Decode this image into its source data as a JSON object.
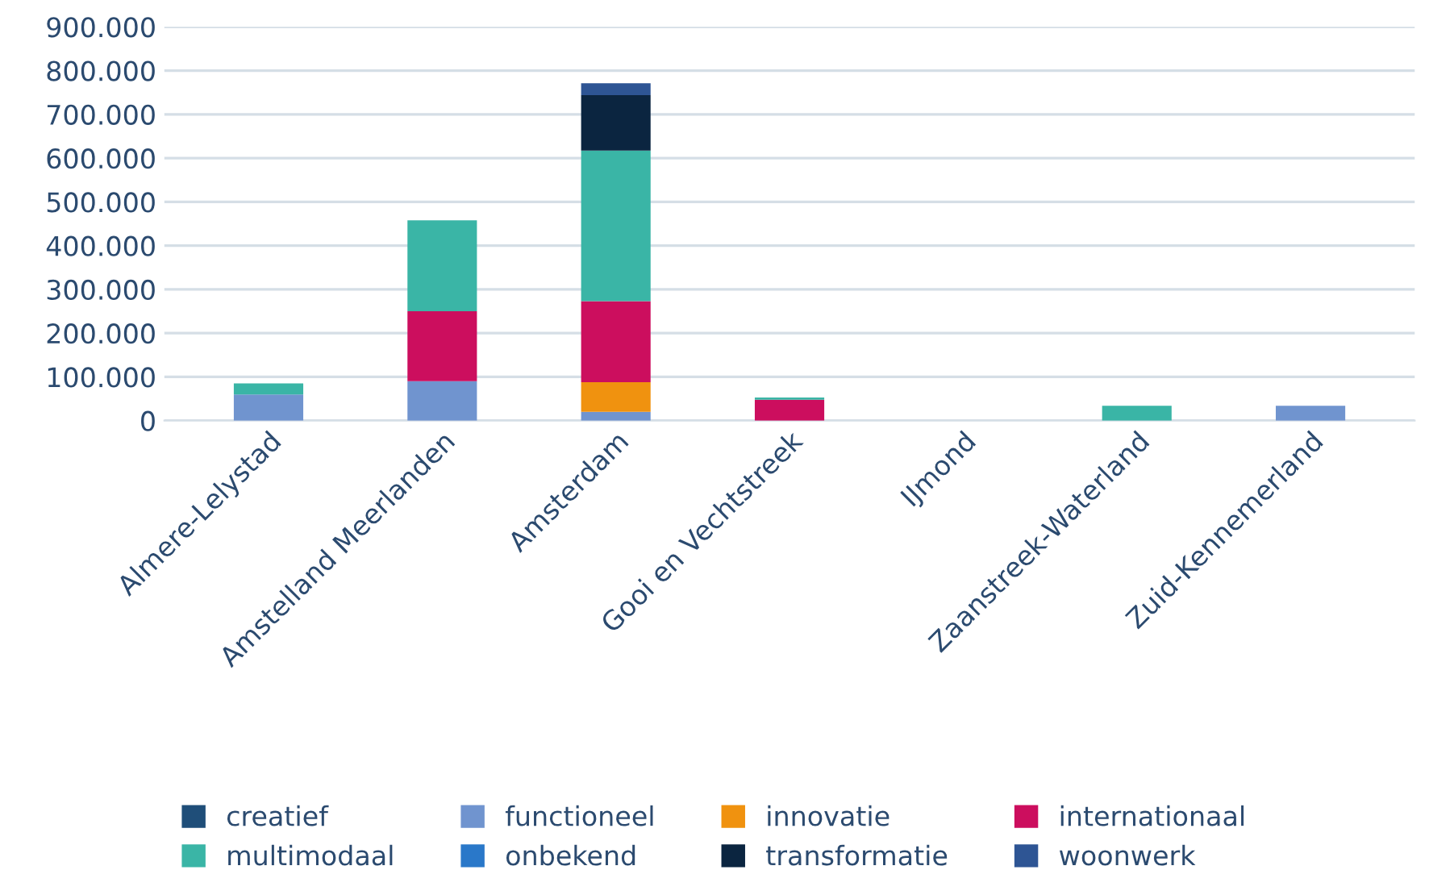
{
  "chart_data": {
    "type": "bar",
    "stacked": true,
    "categories": [
      "Almere-Lelystad",
      "Amstelland Meerlanden",
      "Amsterdam",
      "Gooi en Vechtstreek",
      "IJmond",
      "Zaanstreek-Waterland",
      "Zuid-Kennemerland"
    ],
    "series": [
      {
        "name": "creatief",
        "color": "#1f4e79",
        "values": [
          null,
          null,
          null,
          null,
          null,
          null,
          null
        ]
      },
      {
        "name": "functioneel",
        "color": "#7094cf",
        "values": [
          60000,
          90000,
          20000,
          0,
          0,
          0,
          34000
        ]
      },
      {
        "name": "innovatie",
        "color": "#f0920f",
        "values": [
          0,
          0,
          68000,
          0,
          0,
          0,
          0
        ]
      },
      {
        "name": "internationaal",
        "color": "#cc0e5e",
        "values": [
          0,
          160000,
          185000,
          48000,
          0,
          0,
          0
        ]
      },
      {
        "name": "multimodaal",
        "color": "#3ab5a6",
        "values": [
          25000,
          208000,
          344000,
          5000,
          0,
          34000,
          0
        ]
      },
      {
        "name": "onbekend",
        "color": "#2a78c9",
        "values": [
          null,
          null,
          null,
          null,
          null,
          null,
          null
        ]
      },
      {
        "name": "transformatie",
        "color": "#0b2540",
        "values": [
          0,
          0,
          127000,
          0,
          0,
          0,
          0
        ]
      },
      {
        "name": "woonwerk",
        "color": "#2e5594",
        "values": [
          0,
          0,
          27000,
          0,
          0,
          0,
          0
        ]
      }
    ],
    "ylim": [
      0,
      900000
    ],
    "yticks": [
      {
        "value": 0,
        "label": "0"
      },
      {
        "value": 100000,
        "label": "100.000"
      },
      {
        "value": 200000,
        "label": "200.000"
      },
      {
        "value": 300000,
        "label": "300.000"
      },
      {
        "value": 400000,
        "label": "400.000"
      },
      {
        "value": 500000,
        "label": "500.000"
      },
      {
        "value": 600000,
        "label": "600.000"
      },
      {
        "value": 700000,
        "label": "700.000"
      },
      {
        "value": 800000,
        "label": "800.000"
      },
      {
        "value": 900000,
        "label": "900.000"
      }
    ],
    "grid": "y",
    "legend": "bottom"
  }
}
